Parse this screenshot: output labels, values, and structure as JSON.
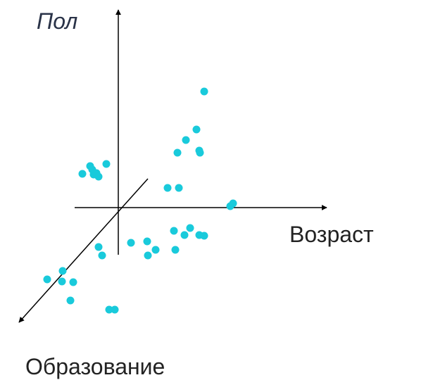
{
  "chart_data": {
    "type": "scatter",
    "title": "",
    "axes": {
      "vertical": "Пол",
      "horizontal": "Возраст",
      "depth": "Образование"
    },
    "grid": false,
    "legend": "none",
    "colors": {
      "point": "#19cadb",
      "axis": "#000000"
    },
    "note": "Illustrative 3D scatter without tick values; points given as (Возраст, Пол) in projected plot units relative to the axis origin.",
    "points": [
      [
        122,
        165
      ],
      [
        96,
        96
      ],
      [
        84,
        78
      ],
      [
        115,
        81
      ],
      [
        111,
        111
      ],
      [
        116,
        78
      ],
      [
        70,
        28
      ],
      [
        86,
        28
      ],
      [
        159,
        2
      ],
      [
        163,
        6
      ],
      [
        -51,
        48
      ],
      [
        -40,
        59
      ],
      [
        -35,
        47
      ],
      [
        -37,
        54
      ],
      [
        -31,
        49
      ],
      [
        -17,
        62
      ],
      [
        -28,
        44
      ],
      [
        -28,
        -56
      ],
      [
        -23,
        -68
      ],
      [
        18,
        -50
      ],
      [
        41,
        -48
      ],
      [
        42,
        -68
      ],
      [
        53,
        -60
      ],
      [
        81,
        -60
      ],
      [
        94,
        -39
      ],
      [
        79,
        -33
      ],
      [
        102,
        -29
      ],
      [
        115,
        -39
      ],
      [
        122,
        -40
      ],
      [
        -101,
        -102
      ],
      [
        -80,
        -105
      ],
      [
        -79,
        -90
      ],
      [
        -64,
        -106
      ],
      [
        -68,
        -132
      ],
      [
        -13,
        -145
      ],
      [
        -5,
        -145
      ]
    ]
  }
}
